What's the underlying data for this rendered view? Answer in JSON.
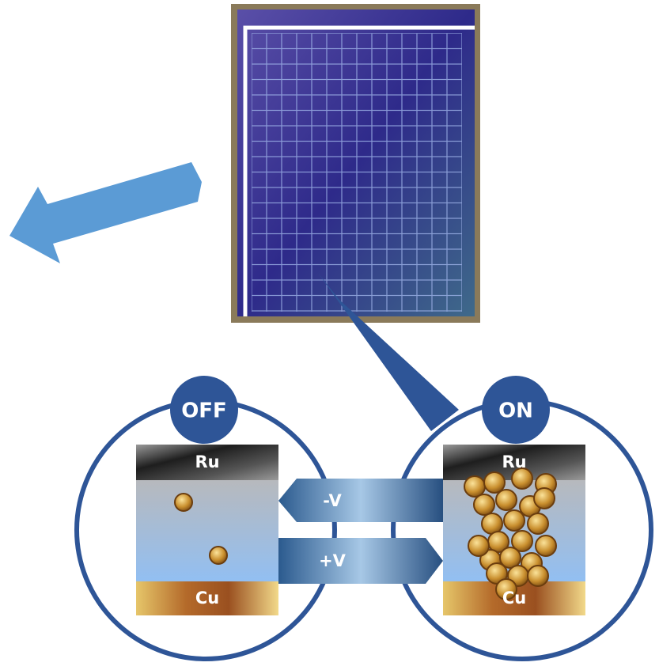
{
  "states": [
    {
      "label": "OFF",
      "top": "Ru",
      "bottom": "Cu"
    },
    {
      "label": "ON",
      "top": "Ru",
      "bottom": "Cu"
    }
  ],
  "arrows": [
    "-V",
    "+V"
  ]
}
